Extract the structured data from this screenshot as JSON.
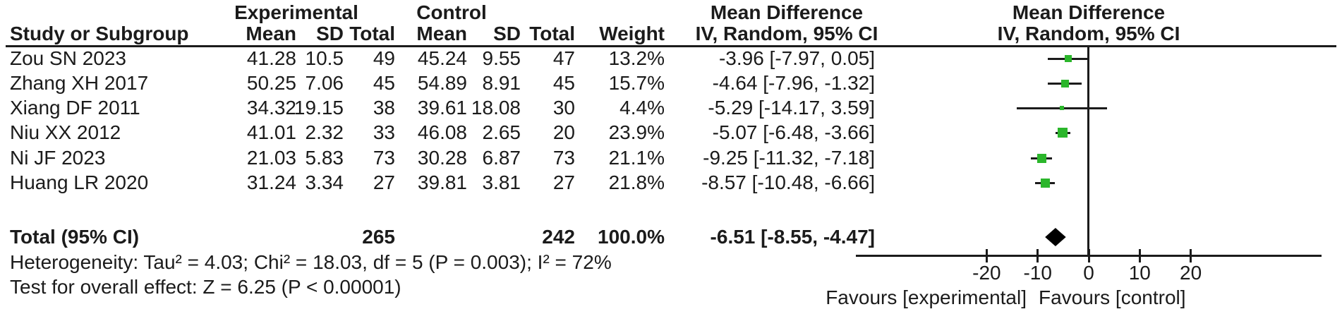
{
  "header": {
    "group_experimental": "Experimental",
    "group_control": "Control",
    "col_study": "Study or Subgroup",
    "col_mean": "Mean",
    "col_sd": "SD",
    "col_total": "Total",
    "col_weight": "Weight",
    "col_md": "Mean Difference",
    "col_method": "IV, Random, 95% CI"
  },
  "chart_data": {
    "type": "forest",
    "effect_measure": "Mean Difference",
    "method": "IV, Random, 95% CI",
    "studies": [
      {
        "name": "Zou SN 2023",
        "mean_e": "41.28",
        "sd_e": "10.5",
        "total_e": "49",
        "mean_c": "45.24",
        "sd_c": "9.55",
        "total_c": "47",
        "weight": "13.2%",
        "weight_pct": 13.2,
        "md": -3.96,
        "ci_low": -7.97,
        "ci_high": 0.05,
        "ci_text": "-3.96 [-7.97, 0.05]"
      },
      {
        "name": "Zhang XH 2017",
        "mean_e": "50.25",
        "sd_e": "7.06",
        "total_e": "45",
        "mean_c": "54.89",
        "sd_c": "8.91",
        "total_c": "45",
        "weight": "15.7%",
        "weight_pct": 15.7,
        "md": -4.64,
        "ci_low": -7.96,
        "ci_high": -1.32,
        "ci_text": "-4.64 [-7.96, -1.32]"
      },
      {
        "name": "Xiang DF 2011",
        "mean_e": "34.32",
        "sd_e": "19.15",
        "total_e": "38",
        "mean_c": "39.61",
        "sd_c": "18.08",
        "total_c": "30",
        "weight": "4.4%",
        "weight_pct": 4.4,
        "md": -5.29,
        "ci_low": -14.17,
        "ci_high": 3.59,
        "ci_text": "-5.29 [-14.17, 3.59]"
      },
      {
        "name": "Niu XX 2012",
        "mean_e": "41.01",
        "sd_e": "2.32",
        "total_e": "33",
        "mean_c": "46.08",
        "sd_c": "2.65",
        "total_c": "20",
        "weight": "23.9%",
        "weight_pct": 23.9,
        "md": -5.07,
        "ci_low": -6.48,
        "ci_high": -3.66,
        "ci_text": "-5.07 [-6.48, -3.66]"
      },
      {
        "name": "Ni JF 2023",
        "mean_e": "21.03",
        "sd_e": "5.83",
        "total_e": "73",
        "mean_c": "30.28",
        "sd_c": "6.87",
        "total_c": "73",
        "weight": "21.1%",
        "weight_pct": 21.1,
        "md": -9.25,
        "ci_low": -11.32,
        "ci_high": -7.18,
        "ci_text": "-9.25 [-11.32, -7.18]"
      },
      {
        "name": "Huang LR 2020",
        "mean_e": "31.24",
        "sd_e": "3.34",
        "total_e": "27",
        "mean_c": "39.81",
        "sd_c": "3.81",
        "total_c": "27",
        "weight": "21.8%",
        "weight_pct": 21.8,
        "md": -8.57,
        "ci_low": -10.48,
        "ci_high": -6.66,
        "ci_text": "-8.57 [-10.48, -6.66]"
      }
    ],
    "total": {
      "label": "Total (95% CI)",
      "total_e": "265",
      "total_c": "242",
      "weight": "100.0%",
      "md": -6.51,
      "ci_low": -8.55,
      "ci_high": -4.47,
      "ci_text": "-6.51 [-8.55, -4.47]"
    },
    "heterogeneity": "Heterogeneity: Tau² = 4.03; Chi² = 18.03, df = 5 (P = 0.003); I² = 72%",
    "overall_effect": "Test for overall effect: Z = 6.25 (P < 0.00001)",
    "axis": {
      "ticks": [
        -20,
        -10,
        0,
        10,
        20
      ],
      "tick_labels": [
        "-20",
        "-10",
        "0",
        "10",
        "20"
      ],
      "xlim": [
        -45,
        45
      ],
      "favours_left": "Favours [experimental]",
      "favours_right": "Favours [control]"
    },
    "colors": {
      "square": "#2bb62b",
      "diamond": "#000000",
      "lines": "#1b1b1b"
    }
  }
}
